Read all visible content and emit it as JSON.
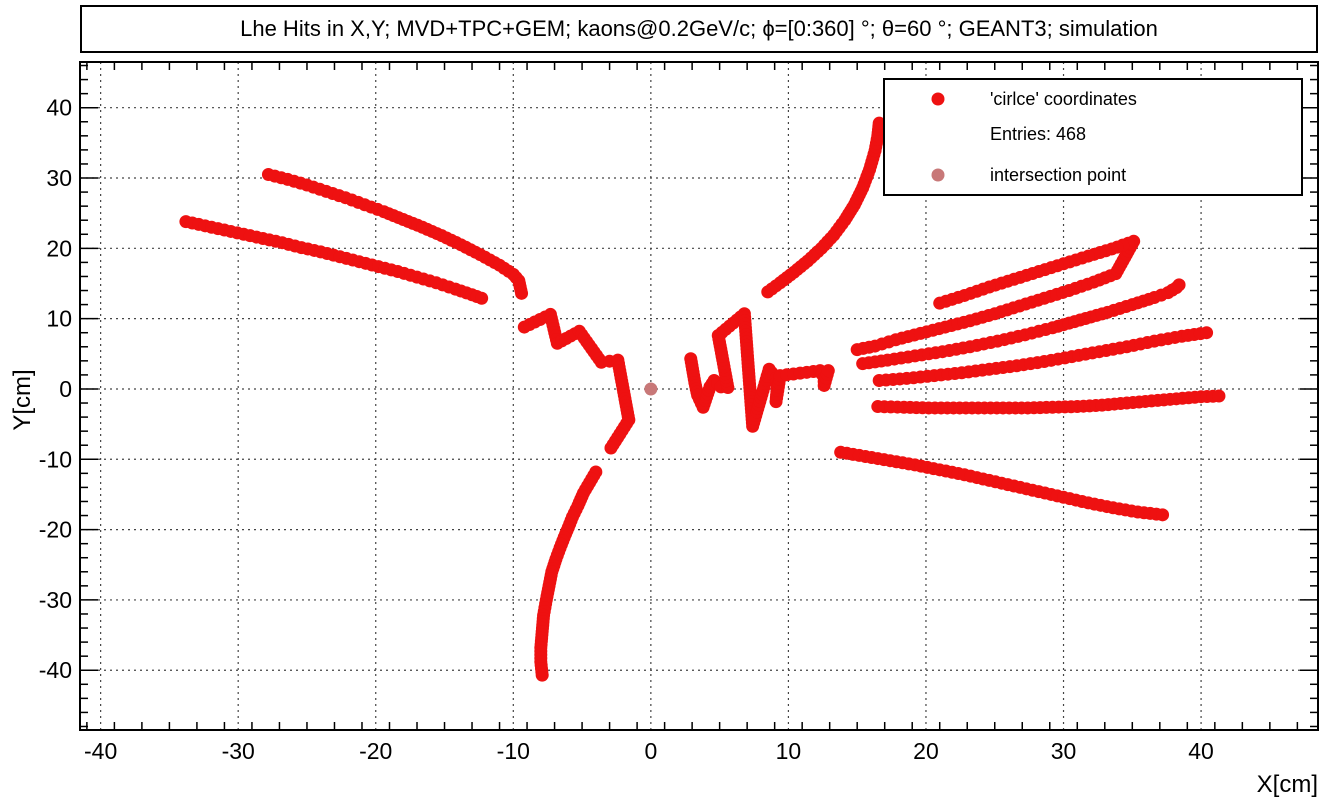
{
  "chart_data": {
    "type": "scatter",
    "title": "Lhe Hits in X,Y; MVD+TPC+GEM; kaons@0.2GeV/c; ϕ=[0:360] °; θ=60 °; GEANT3; simulation",
    "xlabel": "X[cm]",
    "ylabel": "Y[cm]",
    "xlim": [
      -41.5,
      48.5
    ],
    "ylim": [
      -48.5,
      46.5
    ],
    "grid": true,
    "xticks": [
      -40,
      -30,
      -20,
      -10,
      0,
      10,
      20,
      30,
      40
    ],
    "yticks": [
      -40,
      -30,
      -20,
      -10,
      0,
      10,
      20,
      30,
      40
    ],
    "legend": {
      "position": "top-right",
      "entries": [
        {
          "label": "'cirlce' coordinates",
          "marker": "circle",
          "color": "#ee1111"
        },
        {
          "label": "Entries:  468",
          "marker": "none"
        },
        {
          "label": "intersection point",
          "marker": "circle",
          "color": "#c87878"
        }
      ]
    },
    "series": [
      {
        "color": "#ee1111",
        "tracks": [
          [
            [
              -33.8,
              23.8
            ],
            [
              -32.4,
              23.2
            ],
            [
              -31.0,
              22.6
            ],
            [
              -29.6,
              22.0
            ],
            [
              -28.2,
              21.4
            ],
            [
              -26.8,
              20.8
            ],
            [
              -25.4,
              20.1
            ],
            [
              -24.0,
              19.5
            ],
            [
              -22.6,
              18.8
            ],
            [
              -21.2,
              18.1
            ],
            [
              -19.8,
              17.4
            ],
            [
              -18.4,
              16.7
            ],
            [
              -17.0,
              15.9
            ],
            [
              -15.6,
              15.1
            ],
            [
              -14.2,
              14.2
            ],
            [
              -13.0,
              13.4
            ],
            [
              -12.3,
              12.9
            ]
          ],
          [
            [
              -27.8,
              30.5
            ],
            [
              -26.4,
              29.8
            ],
            [
              -25.0,
              29.0
            ],
            [
              -23.6,
              28.1
            ],
            [
              -22.2,
              27.2
            ],
            [
              -20.8,
              26.2
            ],
            [
              -19.4,
              25.2
            ],
            [
              -18.0,
              24.1
            ],
            [
              -16.6,
              23.0
            ],
            [
              -15.2,
              21.8
            ],
            [
              -13.8,
              20.5
            ],
            [
              -12.4,
              19.1
            ],
            [
              -11.0,
              17.6
            ],
            [
              -10.0,
              16.3
            ],
            [
              -9.6,
              15.4
            ],
            [
              -9.4,
              13.6
            ]
          ],
          [
            [
              -9.2,
              8.8
            ],
            [
              -7.3,
              10.6
            ],
            [
              -6.8,
              6.5
            ],
            [
              -5.2,
              8.2
            ],
            [
              -3.6,
              3.8
            ],
            [
              -2.4,
              4.1
            ],
            [
              -1.6,
              -4.4
            ],
            [
              -2.9,
              -8.4
            ]
          ],
          [
            [
              -4.0,
              -11.8
            ],
            [
              -4.9,
              -14.8
            ],
            [
              -5.3,
              -16.6
            ],
            [
              -5.7,
              -18.2
            ],
            [
              -6.0,
              -19.7
            ],
            [
              -6.3,
              -21.1
            ],
            [
              -6.6,
              -22.6
            ],
            [
              -6.9,
              -24.2
            ],
            [
              -7.2,
              -26.0
            ],
            [
              -7.4,
              -28.0
            ],
            [
              -7.6,
              -30.0
            ],
            [
              -7.8,
              -32.2
            ],
            [
              -7.9,
              -34.5
            ],
            [
              -8.0,
              -36.8
            ],
            [
              -8.0,
              -38.8
            ],
            [
              -7.9,
              -40.7
            ]
          ],
          [
            [
              2.9,
              4.3
            ],
            [
              3.2,
              0.9
            ],
            [
              3.4,
              -0.9
            ],
            [
              3.8,
              -2.6
            ],
            [
              4.3,
              0.3
            ],
            [
              4.6,
              1.2
            ],
            [
              5.1,
              0.3
            ],
            [
              5.6,
              0.2
            ],
            [
              4.9,
              7.6
            ],
            [
              6.8,
              10.7
            ],
            [
              7.4,
              -5.3
            ],
            [
              8.6,
              2.8
            ],
            [
              9.1,
              1.5
            ],
            [
              9.2,
              0.5
            ],
            [
              9.1,
              -1.8
            ],
            [
              9.4,
              1.9
            ],
            [
              12.3,
              2.6
            ],
            [
              12.6,
              1.6
            ],
            [
              12.6,
              0.5
            ],
            [
              12.9,
              2.6
            ]
          ],
          [
            [
              8.5,
              13.8
            ],
            [
              9.4,
              15.1
            ],
            [
              10.4,
              16.6
            ],
            [
              11.4,
              18.2
            ],
            [
              12.4,
              20.0
            ],
            [
              13.3,
              21.9
            ],
            [
              14.1,
              24.0
            ],
            [
              14.8,
              26.2
            ],
            [
              15.4,
              28.6
            ],
            [
              15.9,
              31.2
            ],
            [
              16.3,
              33.9
            ],
            [
              16.5,
              36.0
            ],
            [
              16.6,
              37.8
            ]
          ],
          [
            [
              15.0,
              5.6
            ],
            [
              16.3,
              6.1
            ],
            [
              17.8,
              7.0
            ],
            [
              19.6,
              7.9
            ],
            [
              21.4,
              8.8
            ],
            [
              23.2,
              9.7
            ],
            [
              25.0,
              10.7
            ],
            [
              26.8,
              11.8
            ],
            [
              28.6,
              12.9
            ],
            [
              30.4,
              14.0
            ],
            [
              32.2,
              15.2
            ],
            [
              33.8,
              16.4
            ],
            [
              35.1,
              21.0
            ],
            [
              33.5,
              19.9
            ],
            [
              31.8,
              18.9
            ],
            [
              30.0,
              17.8
            ],
            [
              28.2,
              16.7
            ],
            [
              26.4,
              15.6
            ],
            [
              24.6,
              14.5
            ],
            [
              22.8,
              13.3
            ],
            [
              21.0,
              12.2
            ]
          ],
          [
            [
              15.4,
              3.6
            ],
            [
              17.2,
              4.1
            ],
            [
              19.2,
              4.7
            ],
            [
              21.2,
              5.3
            ],
            [
              23.2,
              6.0
            ],
            [
              25.2,
              6.8
            ],
            [
              27.2,
              7.7
            ],
            [
              29.2,
              8.7
            ],
            [
              31.2,
              9.8
            ],
            [
              33.2,
              10.9
            ],
            [
              35.0,
              12.0
            ],
            [
              36.6,
              13.0
            ],
            [
              37.6,
              13.7
            ],
            [
              38.2,
              14.4
            ],
            [
              38.4,
              14.8
            ]
          ],
          [
            [
              16.6,
              1.2
            ],
            [
              18.6,
              1.5
            ],
            [
              20.6,
              1.9
            ],
            [
              22.6,
              2.3
            ],
            [
              24.6,
              2.8
            ],
            [
              26.6,
              3.3
            ],
            [
              28.6,
              3.9
            ],
            [
              30.6,
              4.6
            ],
            [
              32.6,
              5.3
            ],
            [
              34.6,
              6.0
            ],
            [
              36.6,
              6.8
            ],
            [
              38.6,
              7.5
            ],
            [
              40.4,
              8.0
            ]
          ],
          [
            [
              16.5,
              -2.5
            ],
            [
              18.4,
              -2.6
            ],
            [
              20.2,
              -2.7
            ],
            [
              22.0,
              -2.7
            ],
            [
              23.8,
              -2.7
            ],
            [
              25.6,
              -2.7
            ],
            [
              27.4,
              -2.7
            ],
            [
              29.2,
              -2.6
            ],
            [
              31.0,
              -2.5
            ],
            [
              32.8,
              -2.3
            ],
            [
              34.6,
              -2.0
            ],
            [
              36.4,
              -1.7
            ],
            [
              38.2,
              -1.4
            ],
            [
              40.0,
              -1.1
            ],
            [
              41.3,
              -1.0
            ]
          ],
          [
            [
              13.8,
              -9.0
            ],
            [
              15.6,
              -9.6
            ],
            [
              17.4,
              -10.2
            ],
            [
              19.2,
              -10.8
            ],
            [
              21.0,
              -11.5
            ],
            [
              22.8,
              -12.2
            ],
            [
              24.6,
              -13.0
            ],
            [
              26.4,
              -13.8
            ],
            [
              28.2,
              -14.6
            ],
            [
              30.0,
              -15.4
            ],
            [
              31.8,
              -16.2
            ],
            [
              33.6,
              -16.9
            ],
            [
              35.4,
              -17.5
            ],
            [
              37.2,
              -17.9
            ]
          ]
        ]
      },
      {
        "color": "#c87878",
        "points": [
          [
            0,
            0
          ]
        ]
      }
    ]
  }
}
